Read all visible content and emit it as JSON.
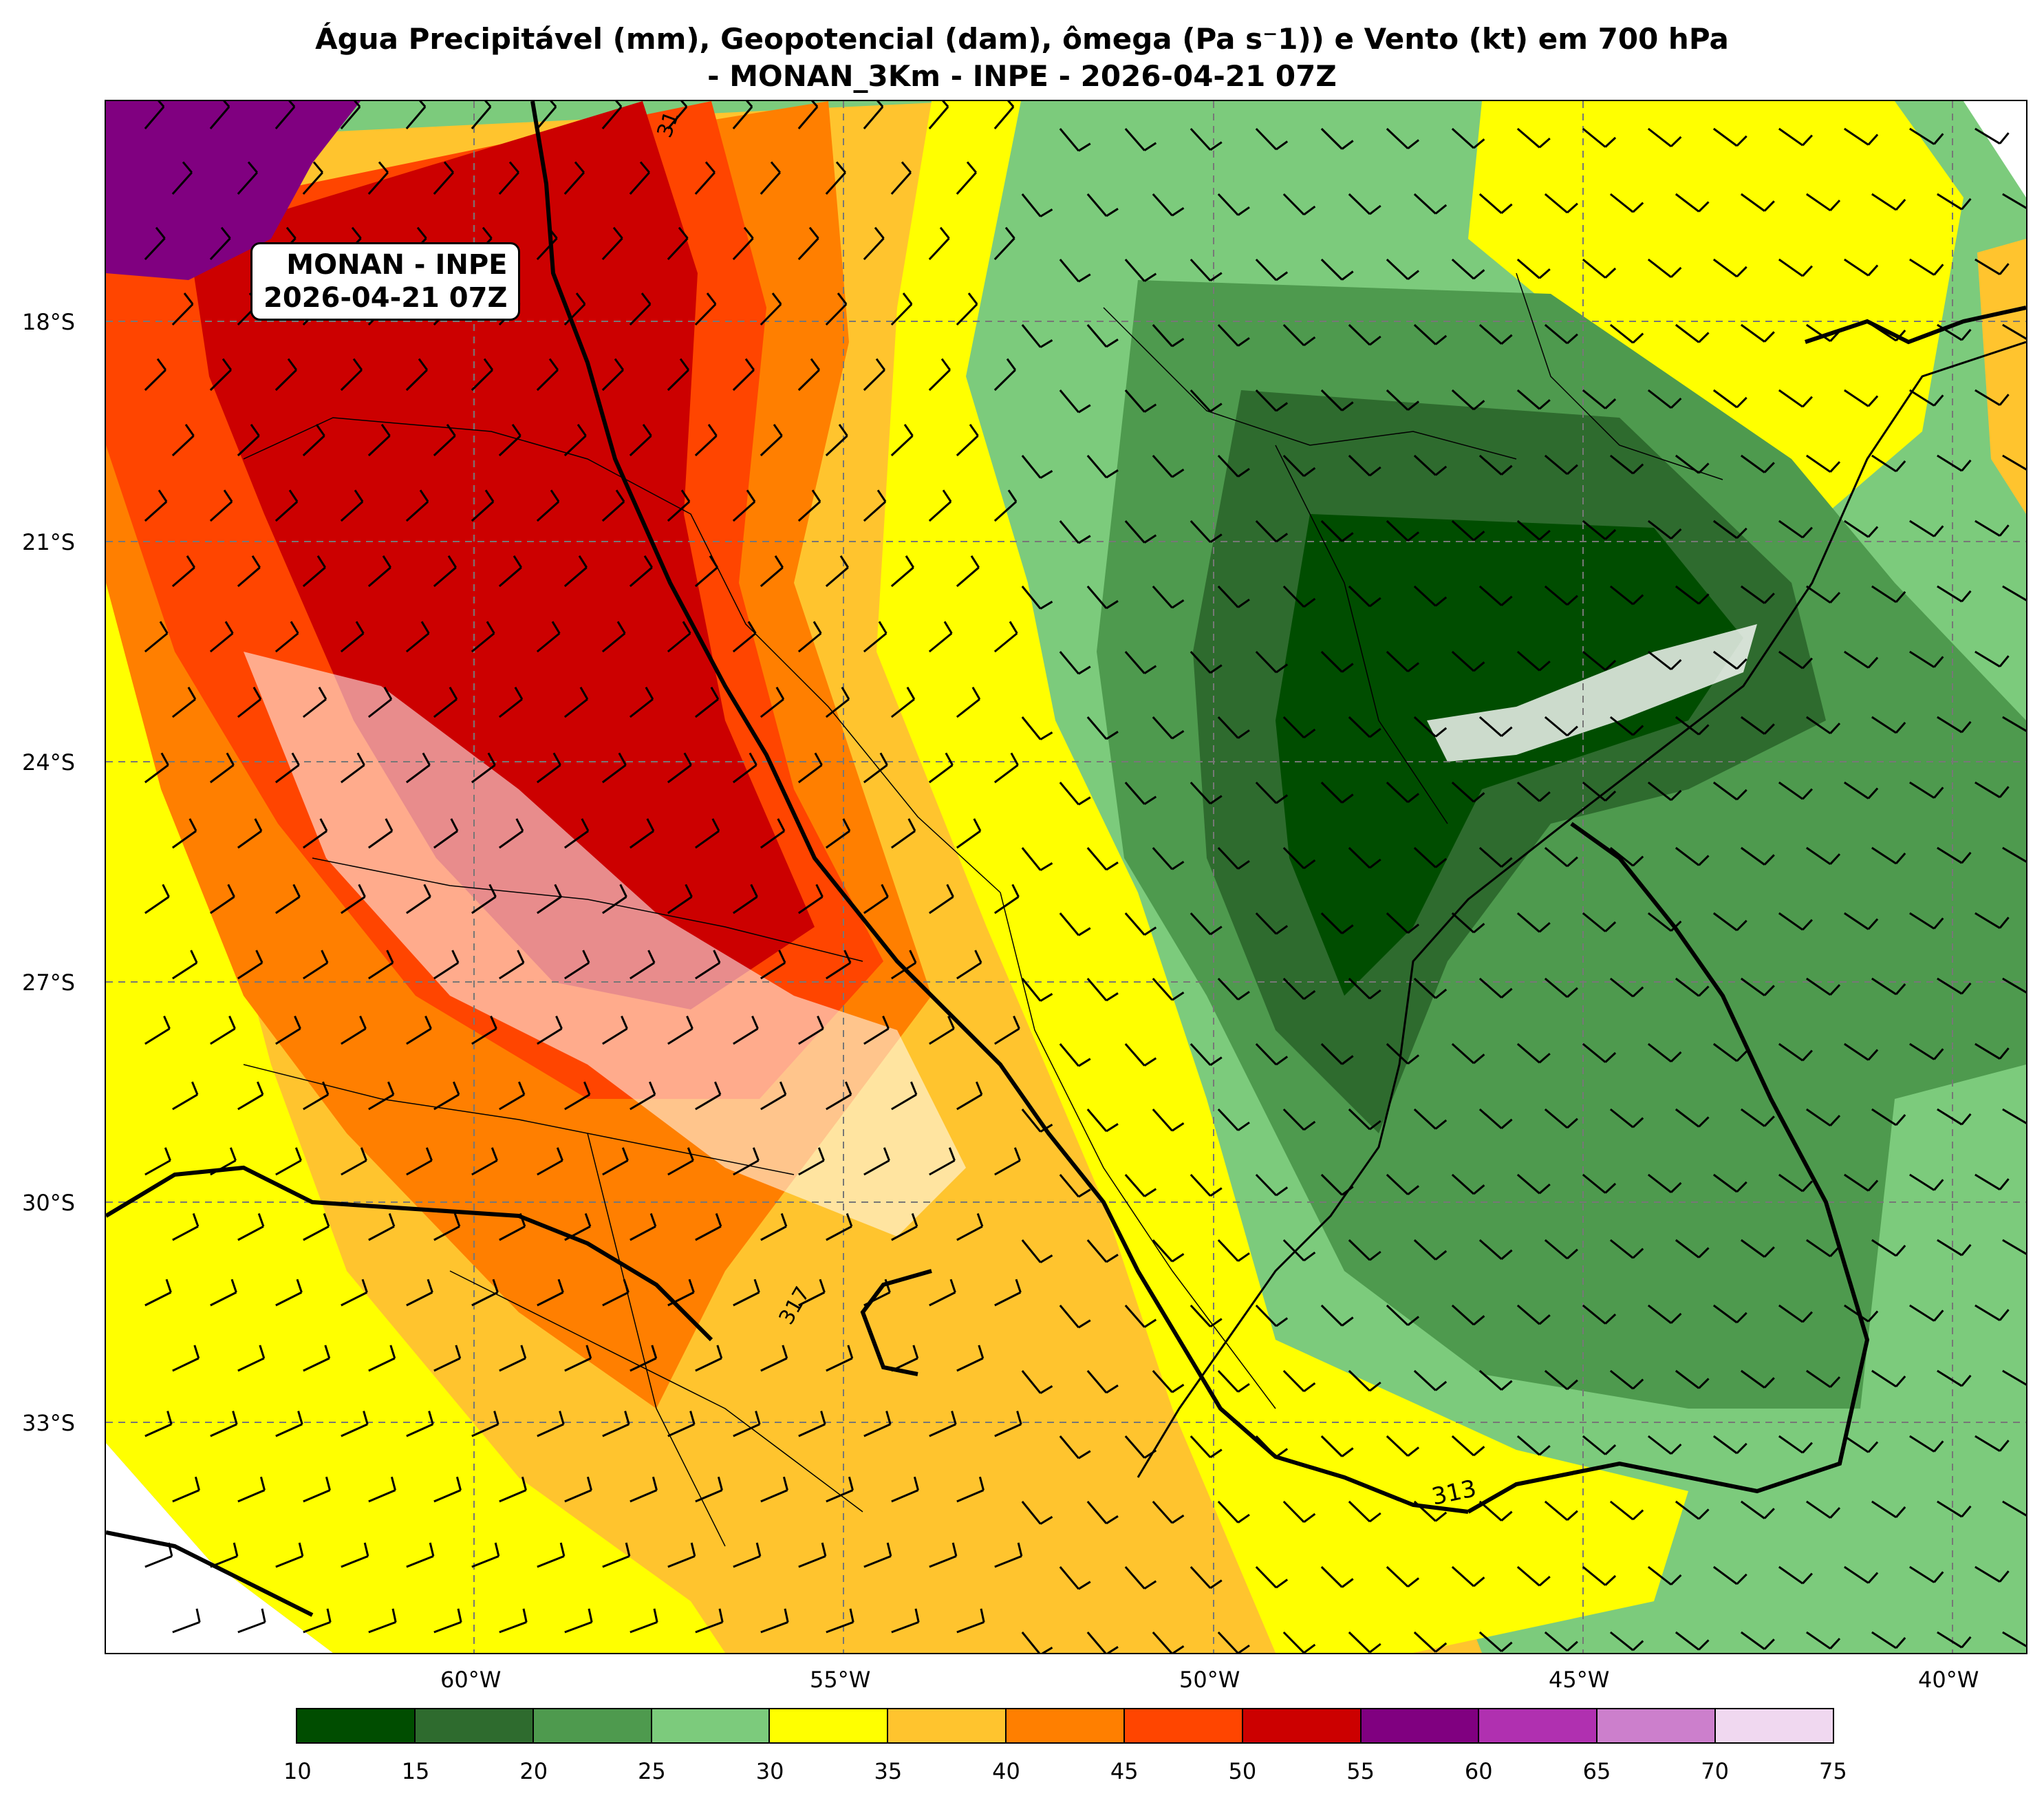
{
  "title": {
    "line1": "Água Precipitável (mm), Geopotencial (dam), ômega (Pa s⁻1)) e Vento (kt) em 700 hPa",
    "line2": "- MONAN_3Km - INPE - 2026-04-21 07Z"
  },
  "info_box": {
    "line1": "MONAN - INPE",
    "line2": "2026-04-21 07Z"
  },
  "lat_labels": [
    "18°S",
    "21°S",
    "24°S",
    "27°S",
    "30°S",
    "33°S"
  ],
  "lon_labels": [
    "60°W",
    "55°W",
    "50°W",
    "45°W",
    "40°W"
  ],
  "contour_labels": [
    "313",
    "31",
    "317"
  ],
  "colorbar": {
    "ticks": [
      "10",
      "15",
      "20",
      "25",
      "30",
      "35",
      "40",
      "45",
      "50",
      "55",
      "60",
      "65",
      "70",
      "75"
    ],
    "colors": [
      "#004d00",
      "#2e6b2e",
      "#4e9a4e",
      "#7ccb7c",
      "#ffff00",
      "#ffc42e",
      "#ff7f00",
      "#ff4500",
      "#cc0000",
      "#800080",
      "#b030b0",
      "#cc7fcc",
      "#f0d8f0"
    ]
  },
  "map_colors": {
    "ocean_green": "#7ccb7c",
    "land_dark_green": "#2e6b2e",
    "core_dark_green": "#004d00",
    "yellow": "#ffff00",
    "orange_light": "#ffc42e",
    "orange": "#ff7f00",
    "red_orange": "#ff4500",
    "red": "#cc0000",
    "purple": "#800080"
  }
}
